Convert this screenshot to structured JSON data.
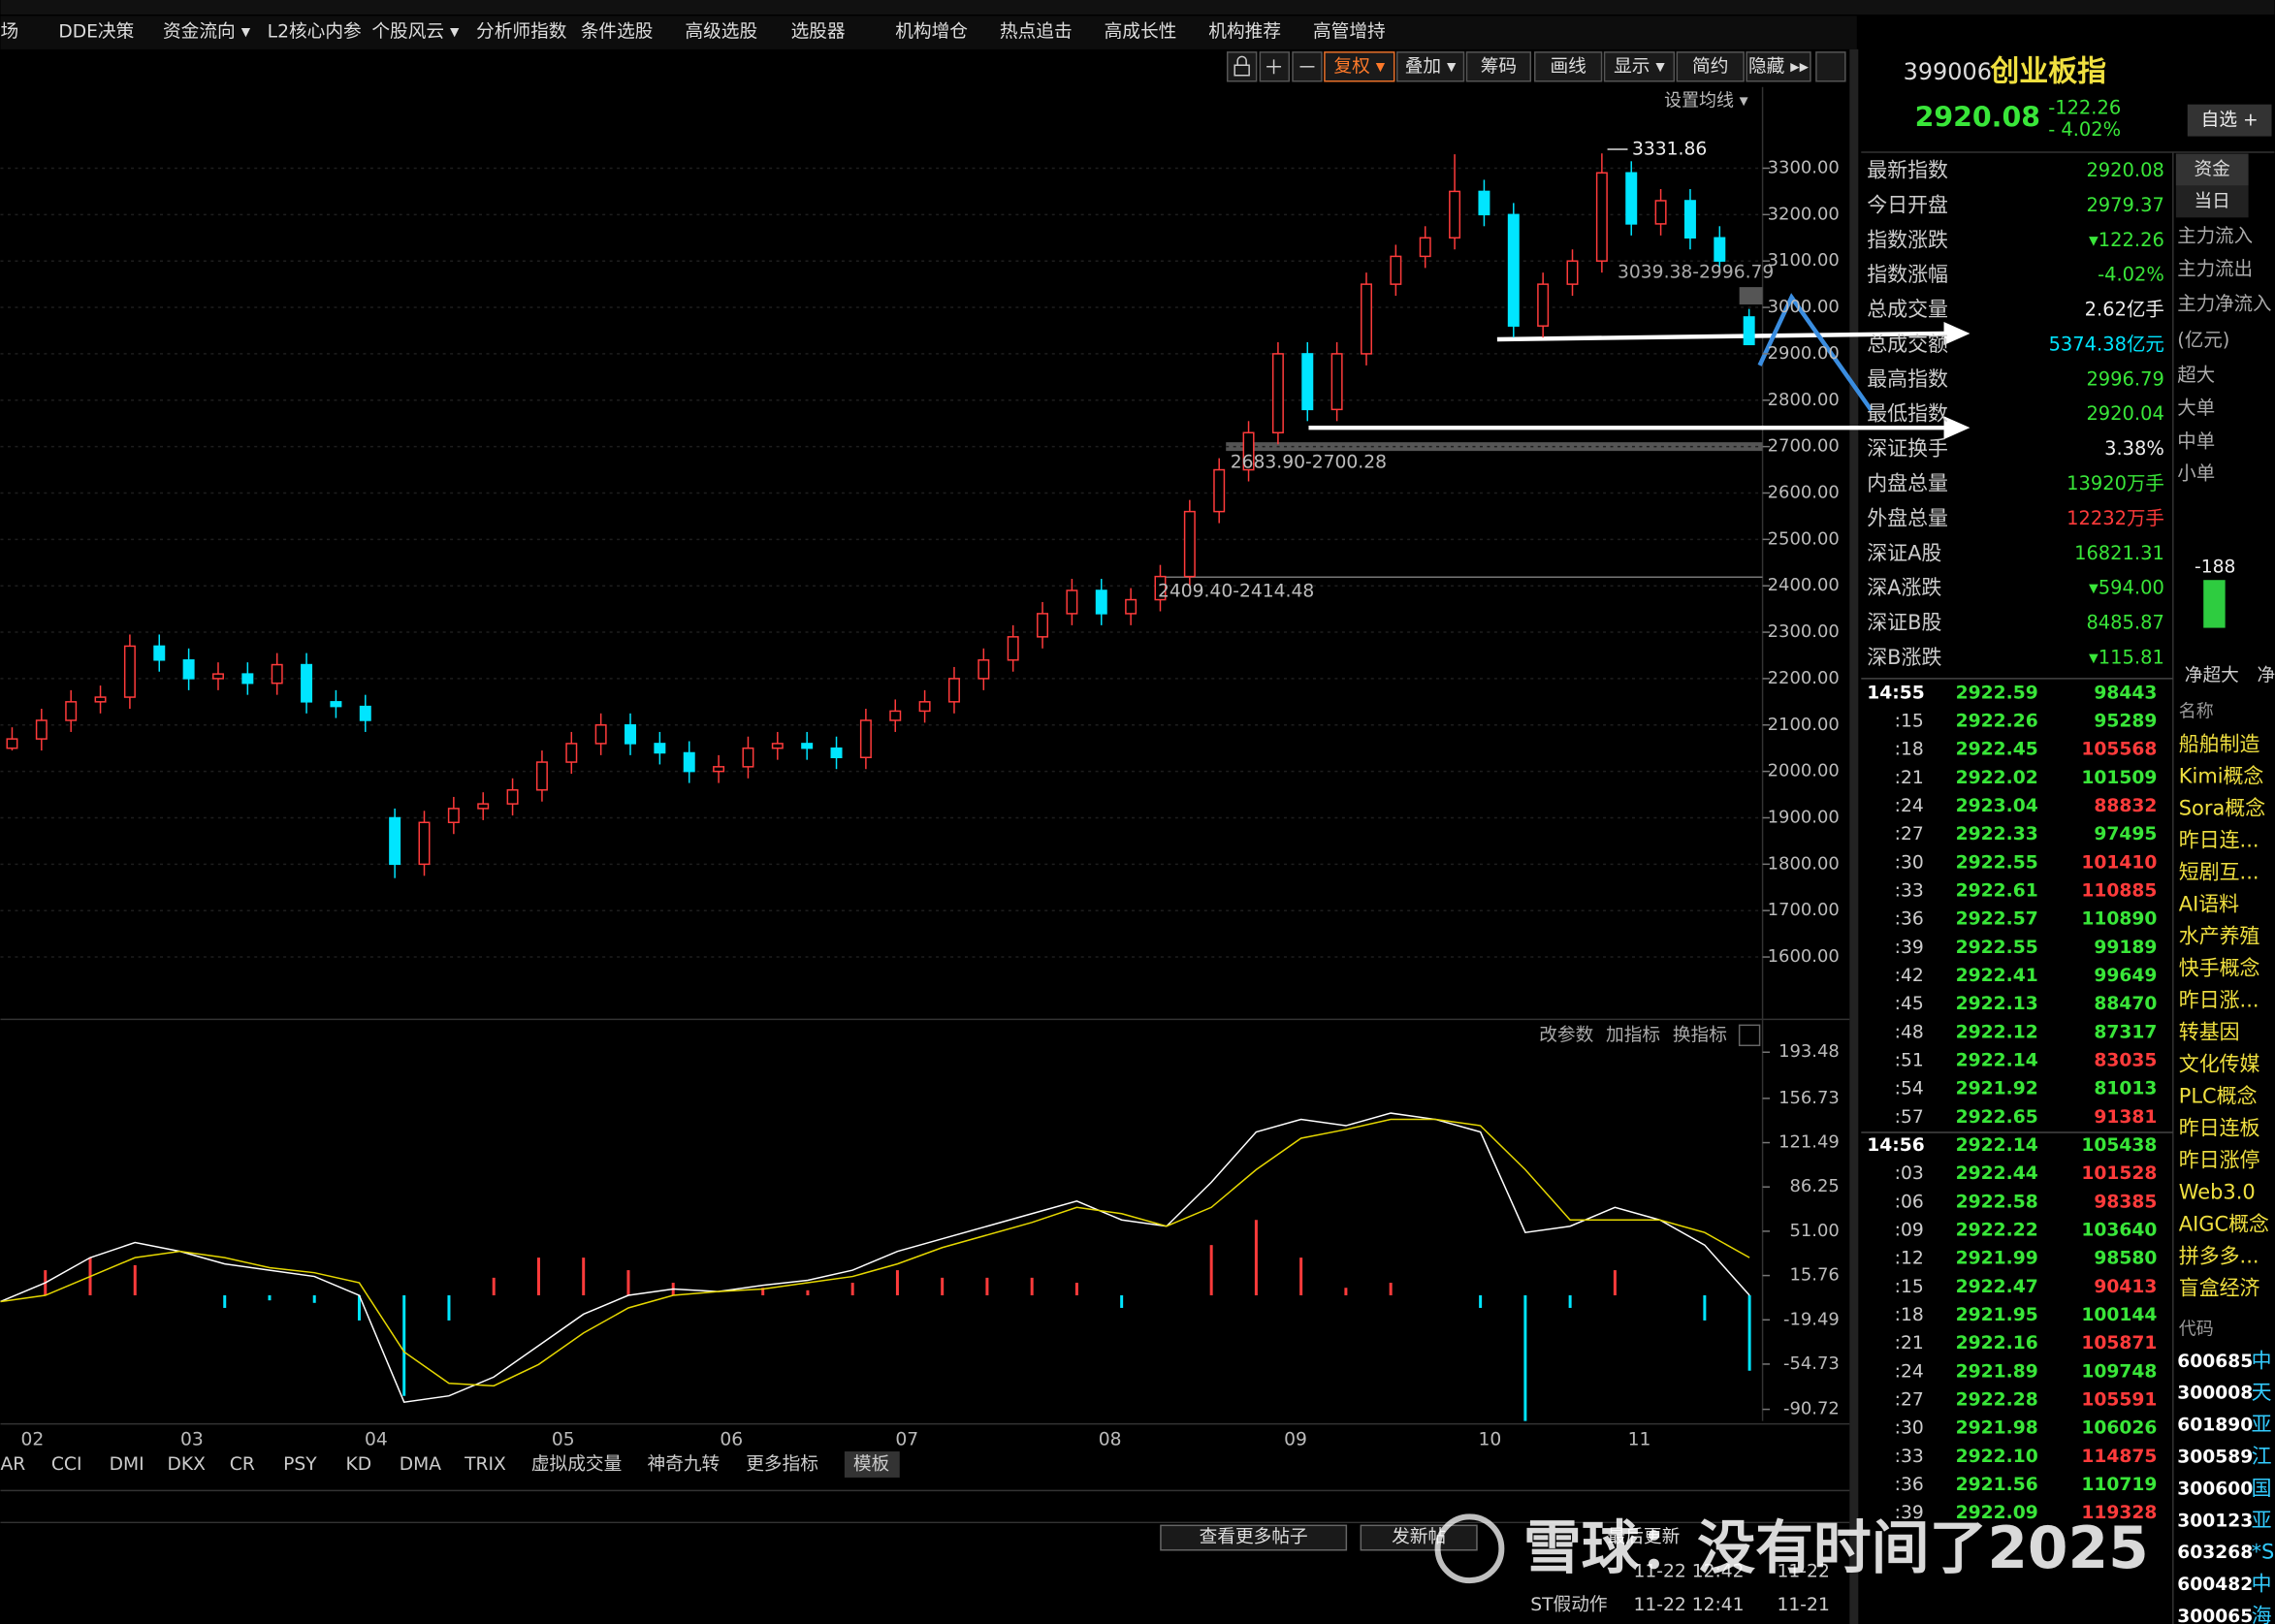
{
  "menu": [
    "场",
    "DDE决策",
    "资金流向 ▾",
    "L2核心内参",
    "个股风云 ▾",
    "分析师指数",
    "条件选股",
    "高级选股",
    "选股器",
    "机构增仓",
    "热点追击",
    "高成长性",
    "机构推荐",
    "高管增持"
  ],
  "toolbar": [
    "复权 ▾",
    "叠加 ▾",
    "筹码",
    "画线",
    "显示 ▾",
    "简约",
    "隐藏 ▸▸"
  ],
  "ma_setting": "设置均线 ▾",
  "kline": {
    "ylim": [
      1475,
      3475
    ],
    "yticks": [
      {
        "value": 3300,
        "label": "3300.00"
      },
      {
        "value": 3200,
        "label": "3200.00"
      },
      {
        "value": 3100,
        "label": "3100.00"
      },
      {
        "value": 3000,
        "label": "3000.00"
      },
      {
        "value": 2900,
        "label": "2900.00"
      },
      {
        "value": 2800,
        "label": "2800.00"
      },
      {
        "value": 2700,
        "label": "2700.00"
      },
      {
        "value": 2600,
        "label": "2600.00"
      },
      {
        "value": 2500,
        "label": "2500.00"
      },
      {
        "value": 2400,
        "label": "2400.00"
      },
      {
        "value": 2300,
        "label": "2300.00"
      },
      {
        "value": 2200,
        "label": "2200.00"
      },
      {
        "value": 2100,
        "label": "2100.00"
      },
      {
        "value": 2000,
        "label": "2000.00"
      },
      {
        "value": 1900,
        "label": "1900.00"
      },
      {
        "value": 1800,
        "label": "1800.00"
      },
      {
        "value": 1700,
        "label": "1700.00"
      },
      {
        "value": 1600,
        "label": "1600.00"
      }
    ],
    "candles": [
      [
        2050,
        2095,
        2045,
        2070
      ],
      [
        2070,
        2135,
        2045,
        2110
      ],
      [
        2110,
        2175,
        2085,
        2150
      ],
      [
        2150,
        2185,
        2125,
        2160
      ],
      [
        2160,
        2295,
        2135,
        2270
      ],
      [
        2270,
        2295,
        2215,
        2240
      ],
      [
        2240,
        2265,
        2175,
        2200
      ],
      [
        2200,
        2235,
        2175,
        2210
      ],
      [
        2210,
        2235,
        2165,
        2190
      ],
      [
        2190,
        2255,
        2165,
        2230
      ],
      [
        2230,
        2255,
        2125,
        2150
      ],
      [
        2150,
        2175,
        2115,
        2140
      ],
      [
        2140,
        2165,
        2085,
        2110
      ],
      [
        1900,
        1920,
        1770,
        1800
      ],
      [
        1800,
        1915,
        1775,
        1890
      ],
      [
        1890,
        1945,
        1865,
        1920
      ],
      [
        1920,
        1955,
        1895,
        1930
      ],
      [
        1930,
        1985,
        1905,
        1960
      ],
      [
        1960,
        2045,
        1935,
        2020
      ],
      [
        2020,
        2085,
        1995,
        2060
      ],
      [
        2060,
        2125,
        2035,
        2100
      ],
      [
        2100,
        2125,
        2035,
        2060
      ],
      [
        2060,
        2085,
        2015,
        2040
      ],
      [
        2040,
        2065,
        1975,
        2000
      ],
      [
        2000,
        2035,
        1975,
        2010
      ],
      [
        2010,
        2075,
        1985,
        2050
      ],
      [
        2050,
        2085,
        2025,
        2060
      ],
      [
        2060,
        2085,
        2025,
        2050
      ],
      [
        2050,
        2075,
        2005,
        2030
      ],
      [
        2030,
        2135,
        2005,
        2110
      ],
      [
        2110,
        2155,
        2085,
        2130
      ],
      [
        2130,
        2175,
        2105,
        2150
      ],
      [
        2150,
        2225,
        2125,
        2200
      ],
      [
        2200,
        2265,
        2175,
        2240
      ],
      [
        2240,
        2315,
        2215,
        2290
      ],
      [
        2290,
        2365,
        2265,
        2340
      ],
      [
        2340,
        2415,
        2315,
        2390
      ],
      [
        2390,
        2415,
        2315,
        2340
      ],
      [
        2340,
        2395,
        2315,
        2370
      ],
      [
        2370,
        2445,
        2345,
        2420
      ],
      [
        2420,
        2585,
        2395,
        2560
      ],
      [
        2560,
        2675,
        2535,
        2650
      ],
      [
        2650,
        2755,
        2625,
        2730
      ],
      [
        2730,
        2925,
        2705,
        2900
      ],
      [
        2900,
        2925,
        2755,
        2780
      ],
      [
        2780,
        2925,
        2755,
        2900
      ],
      [
        2900,
        3075,
        2875,
        3050
      ],
      [
        3050,
        3135,
        3025,
        3110
      ],
      [
        3110,
        3175,
        3085,
        3150
      ],
      [
        3150,
        3330,
        3125,
        3250
      ],
      [
        3250,
        3275,
        3175,
        3200
      ],
      [
        3200,
        3225,
        2935,
        2960
      ],
      [
        2960,
        3075,
        2935,
        3050
      ],
      [
        3050,
        3125,
        3025,
        3100
      ],
      [
        3100,
        3331.86,
        3075,
        3290
      ],
      [
        3290,
        3315,
        3155,
        3180
      ],
      [
        3180,
        3255,
        3155,
        3230
      ],
      [
        3230,
        3255,
        3125,
        3150
      ],
      [
        3150,
        3175,
        3075,
        3100
      ],
      [
        2979.37,
        2996.79,
        2920.04,
        2920.08
      ]
    ],
    "annotations": [
      "3331.86",
      "3039.38-2996.79",
      "2683.90-2700.28",
      "2409.40-2414.48"
    ]
  },
  "macd": {
    "buttons": [
      "改参数",
      "加指标",
      "换指标"
    ],
    "ylim": [
      -100,
      200
    ],
    "yticks": [
      {
        "value": 193.48,
        "label": "193.48"
      },
      {
        "value": 156.73,
        "label": "156.73"
      },
      {
        "value": 121.49,
        "label": "121.49"
      },
      {
        "value": 86.25,
        "label": "86.25"
      },
      {
        "value": 51,
        "label": "51.00"
      },
      {
        "value": 15.76,
        "label": "15.76"
      },
      {
        "value": -19.49,
        "label": "-19.49"
      },
      {
        "value": -54.73,
        "label": "-54.73"
      },
      {
        "value": -90.72,
        "label": "-90.72"
      }
    ],
    "dif": [
      -5,
      10,
      30,
      42,
      35,
      25,
      20,
      15,
      0,
      -85,
      -80,
      -65,
      -40,
      -15,
      0,
      5,
      3,
      8,
      12,
      20,
      35,
      45,
      55,
      65,
      75,
      60,
      55,
      90,
      130,
      140,
      135,
      145,
      140,
      130,
      50,
      55,
      70,
      60,
      40,
      0
    ],
    "dea": [
      -5,
      0,
      15,
      30,
      35,
      30,
      22,
      18,
      10,
      -45,
      -70,
      -72,
      -55,
      -30,
      -10,
      0,
      3,
      5,
      10,
      15,
      25,
      38,
      48,
      58,
      70,
      65,
      55,
      70,
      100,
      125,
      132,
      140,
      140,
      135,
      100,
      60,
      60,
      60,
      50,
      30
    ],
    "hist": [
      0,
      20,
      30,
      24,
      0,
      -10,
      -4,
      -6,
      -20,
      -80,
      -20,
      14,
      30,
      30,
      20,
      10,
      0,
      6,
      4,
      10,
      20,
      14,
      14,
      14,
      10,
      -10,
      0,
      40,
      60,
      30,
      6,
      10,
      0,
      -10,
      -100,
      -10,
      20,
      0,
      -20,
      -60
    ]
  },
  "months": [
    "02",
    "03",
    "04",
    "05",
    "06",
    "07",
    "08",
    "09",
    "10",
    "11"
  ],
  "indicator_tabs": [
    "AR",
    "CCI",
    "DMI",
    "DKX",
    "CR",
    "PSY",
    "KD",
    "DMA",
    "TRIX",
    "虚拟成交量",
    "神奇九转",
    "更多指标",
    "模板"
  ],
  "quote": {
    "code": "399006",
    "name": "创业板指",
    "price": "2920.08",
    "change": "-122.26",
    "pct": "- 4.02%",
    "add": "自选 +"
  },
  "stats": [
    [
      "最新指数",
      "2920.08"
    ],
    [
      "今日开盘",
      "2979.37"
    ],
    [
      "指数涨跌",
      "▾122.26"
    ],
    [
      "指数涨幅",
      "-4.02%"
    ],
    [
      "总成交量",
      "2.62亿手"
    ],
    [
      "总成交额",
      "5374.38亿元"
    ],
    [
      "最高指数",
      "2996.79"
    ],
    [
      "最低指数",
      "2920.04"
    ],
    [
      "深证换手",
      "3.38%"
    ],
    [
      "内盘总量",
      "13920万手"
    ],
    [
      "外盘总量",
      "12232万手"
    ],
    [
      "深证A股",
      "16821.31"
    ],
    [
      "深A涨跌",
      "▾594.00"
    ],
    [
      "深证B股",
      "8485.87"
    ],
    [
      "深B涨跌",
      "▾115.81"
    ]
  ],
  "ticks": [
    [
      "14:55",
      "2922.59",
      "98443",
      "g"
    ],
    [
      ":15",
      "2922.26",
      "95289",
      "g"
    ],
    [
      ":18",
      "2922.45",
      "105568",
      "r"
    ],
    [
      ":21",
      "2922.02",
      "101509",
      "g"
    ],
    [
      ":24",
      "2923.04",
      "88832",
      "r"
    ],
    [
      ":27",
      "2922.33",
      "97495",
      "g"
    ],
    [
      ":30",
      "2922.55",
      "101410",
      "r"
    ],
    [
      ":33",
      "2922.61",
      "110885",
      "r"
    ],
    [
      ":36",
      "2922.57",
      "110890",
      "g"
    ],
    [
      ":39",
      "2922.55",
      "99189",
      "g"
    ],
    [
      ":42",
      "2922.41",
      "99649",
      "g"
    ],
    [
      ":45",
      "2922.13",
      "88470",
      "g"
    ],
    [
      ":48",
      "2922.12",
      "87317",
      "g"
    ],
    [
      ":51",
      "2922.14",
      "83035",
      "r"
    ],
    [
      ":54",
      "2921.92",
      "81013",
      "g"
    ],
    [
      ":57",
      "2922.65",
      "91381",
      "r"
    ],
    [
      "14:56",
      "2922.14",
      "105438",
      "g"
    ],
    [
      ":03",
      "2922.44",
      "101528",
      "r"
    ],
    [
      ":06",
      "2922.58",
      "98385",
      "r"
    ],
    [
      ":09",
      "2922.22",
      "103640",
      "g"
    ],
    [
      ":12",
      "2921.99",
      "98580",
      "g"
    ],
    [
      ":15",
      "2922.47",
      "90413",
      "r"
    ],
    [
      ":18",
      "2921.95",
      "100144",
      "g"
    ],
    [
      ":21",
      "2922.16",
      "105871",
      "r"
    ],
    [
      ":24",
      "2921.89",
      "109748",
      "g"
    ],
    [
      ":27",
      "2922.28",
      "105591",
      "r"
    ],
    [
      ":30",
      "2921.98",
      "106026",
      "g"
    ],
    [
      ":33",
      "2922.10",
      "114875",
      "r"
    ],
    [
      ":36",
      "2921.56",
      "110719",
      "g"
    ],
    [
      ":39",
      "2922.09",
      "119328",
      "r"
    ]
  ],
  "fund": {
    "tabs": [
      "资金",
      "当日"
    ],
    "rows": [
      "主力流入",
      "主力流出",
      "主力净流入",
      "(亿元)",
      "超大",
      "大单",
      "中单",
      "小单"
    ],
    "bar_value": "-188",
    "bar_labels": [
      "净超大",
      "净"
    ],
    "name_header": "名称",
    "concepts": [
      "船舶制造",
      "Kimi概念",
      "Sora概念",
      "昨日连...",
      "短剧互...",
      "AI语料",
      "水产养殖",
      "快手概念",
      "昨日涨...",
      "转基因",
      "文化传媒",
      "PLC概念",
      "昨日连板",
      "昨日涨停",
      "Web3.0",
      "AIGC概念",
      "拼多多...",
      "盲盒经济"
    ],
    "code_header": "代码",
    "stocks": [
      [
        "600685",
        "中"
      ],
      [
        "300008",
        "天"
      ],
      [
        "601890",
        "亚"
      ],
      [
        "300589",
        "江"
      ],
      [
        "300600",
        "国"
      ],
      [
        "300123",
        "亚"
      ],
      [
        "603268",
        "*S"
      ],
      [
        "600482",
        "中"
      ],
      [
        "300065",
        "海"
      ]
    ]
  },
  "feed": {
    "buttons": [
      "查看更多帖子",
      "发新帖"
    ],
    "header": "最后更新",
    "rows": [
      [
        "",
        "11-22 12:42",
        "11-22"
      ],
      [
        "ST假动作",
        "11-22 12:41",
        "11-21"
      ]
    ]
  },
  "watermark": "雪球：没有时间了2025"
}
